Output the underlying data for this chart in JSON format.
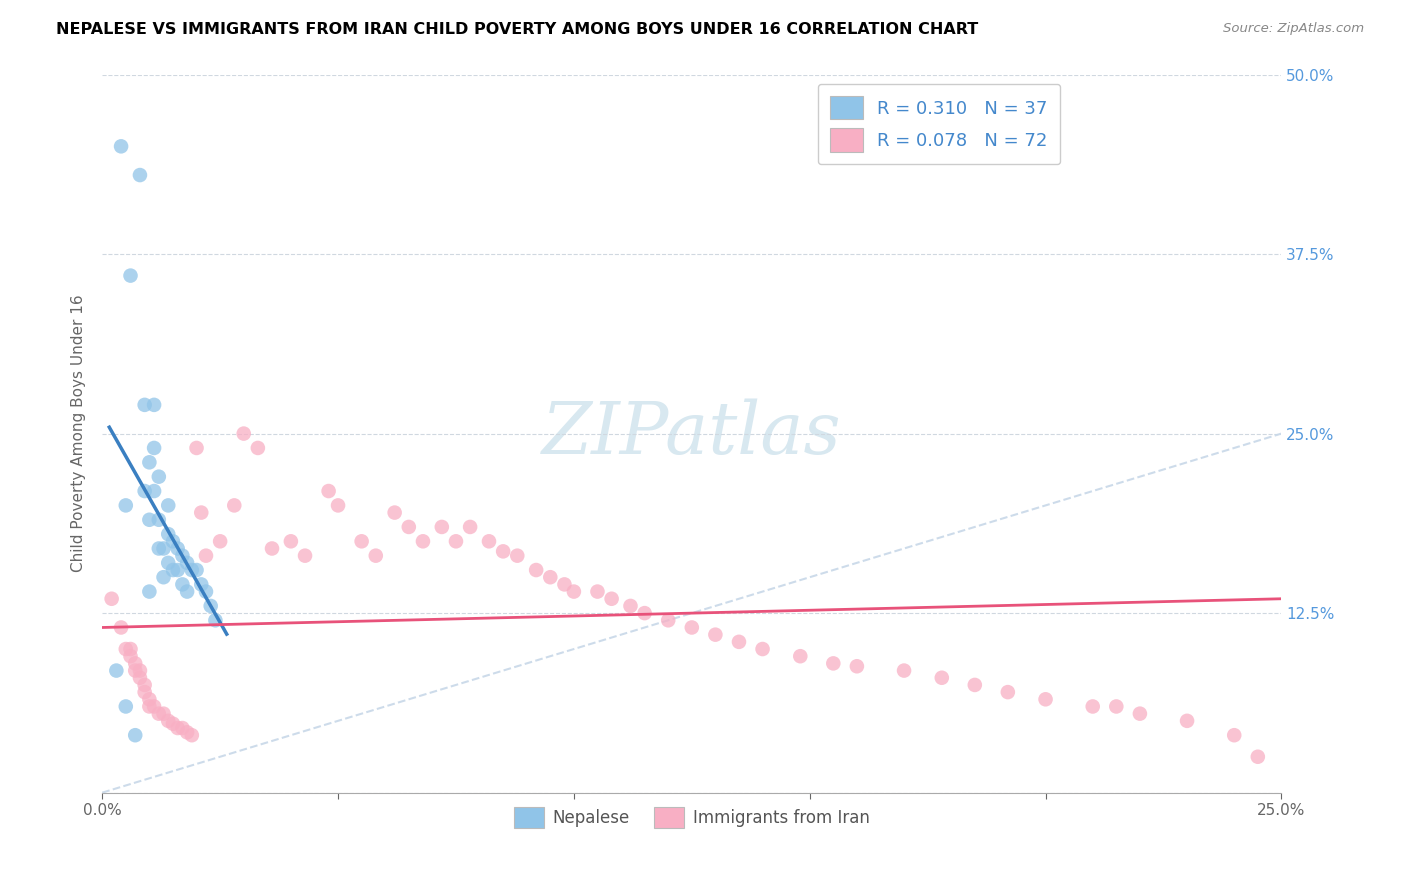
{
  "title": "NEPALESE VS IMMIGRANTS FROM IRAN CHILD POVERTY AMONG BOYS UNDER 16 CORRELATION CHART",
  "source": "Source: ZipAtlas.com",
  "ylabel": "Child Poverty Among Boys Under 16",
  "xlim": [
    0,
    0.25
  ],
  "ylim": [
    0,
    0.5
  ],
  "xticks": [
    0.0,
    0.05,
    0.1,
    0.15,
    0.2,
    0.25
  ],
  "xticklabels": [
    "0.0%",
    "",
    "",
    "",
    "",
    "25.0%"
  ],
  "yticks": [
    0.0,
    0.125,
    0.25,
    0.375,
    0.5
  ],
  "yticklabels_right": [
    "",
    "12.5%",
    "25.0%",
    "37.5%",
    "50.0%"
  ],
  "legend_x_label": "Nepalese",
  "legend_y_label": "Immigrants from Iran",
  "blue_color": "#90c4e8",
  "pink_color": "#f8afc4",
  "blue_line_color": "#3a7fc1",
  "pink_line_color": "#e8527a",
  "diagonal_color": "#c8d8e8",
  "blue_R": 0.31,
  "blue_N": 37,
  "pink_R": 0.078,
  "pink_N": 72,
  "nepalese_x": [
    0.003,
    0.004,
    0.005,
    0.005,
    0.006,
    0.007,
    0.008,
    0.009,
    0.009,
    0.01,
    0.01,
    0.01,
    0.011,
    0.011,
    0.011,
    0.012,
    0.012,
    0.012,
    0.013,
    0.013,
    0.014,
    0.014,
    0.014,
    0.015,
    0.015,
    0.016,
    0.016,
    0.017,
    0.017,
    0.018,
    0.018,
    0.019,
    0.02,
    0.021,
    0.022,
    0.023,
    0.024
  ],
  "nepalese_y": [
    0.085,
    0.45,
    0.2,
    0.06,
    0.36,
    0.04,
    0.43,
    0.27,
    0.21,
    0.23,
    0.19,
    0.14,
    0.27,
    0.24,
    0.21,
    0.22,
    0.19,
    0.17,
    0.17,
    0.15,
    0.2,
    0.18,
    0.16,
    0.175,
    0.155,
    0.17,
    0.155,
    0.165,
    0.145,
    0.16,
    0.14,
    0.155,
    0.155,
    0.145,
    0.14,
    0.13,
    0.12
  ],
  "iran_x": [
    0.002,
    0.004,
    0.005,
    0.006,
    0.006,
    0.007,
    0.007,
    0.008,
    0.008,
    0.009,
    0.009,
    0.01,
    0.01,
    0.011,
    0.012,
    0.013,
    0.014,
    0.015,
    0.016,
    0.017,
    0.018,
    0.019,
    0.02,
    0.021,
    0.022,
    0.025,
    0.028,
    0.03,
    0.033,
    0.036,
    0.04,
    0.043,
    0.048,
    0.05,
    0.055,
    0.058,
    0.062,
    0.065,
    0.068,
    0.072,
    0.075,
    0.078,
    0.082,
    0.085,
    0.088,
    0.092,
    0.095,
    0.098,
    0.1,
    0.105,
    0.108,
    0.112,
    0.115,
    0.12,
    0.125,
    0.13,
    0.135,
    0.14,
    0.148,
    0.155,
    0.16,
    0.17,
    0.178,
    0.185,
    0.192,
    0.2,
    0.21,
    0.215,
    0.22,
    0.23,
    0.24,
    0.245
  ],
  "iran_y": [
    0.135,
    0.115,
    0.1,
    0.1,
    0.095,
    0.09,
    0.085,
    0.085,
    0.08,
    0.075,
    0.07,
    0.065,
    0.06,
    0.06,
    0.055,
    0.055,
    0.05,
    0.048,
    0.045,
    0.045,
    0.042,
    0.04,
    0.24,
    0.195,
    0.165,
    0.175,
    0.2,
    0.25,
    0.24,
    0.17,
    0.175,
    0.165,
    0.21,
    0.2,
    0.175,
    0.165,
    0.195,
    0.185,
    0.175,
    0.185,
    0.175,
    0.185,
    0.175,
    0.168,
    0.165,
    0.155,
    0.15,
    0.145,
    0.14,
    0.14,
    0.135,
    0.13,
    0.125,
    0.12,
    0.115,
    0.11,
    0.105,
    0.1,
    0.095,
    0.09,
    0.088,
    0.085,
    0.08,
    0.075,
    0.07,
    0.065,
    0.06,
    0.06,
    0.055,
    0.05,
    0.04,
    0.025
  ],
  "watermark": "ZIPatlas",
  "watermark_color": "#d8e8f0"
}
